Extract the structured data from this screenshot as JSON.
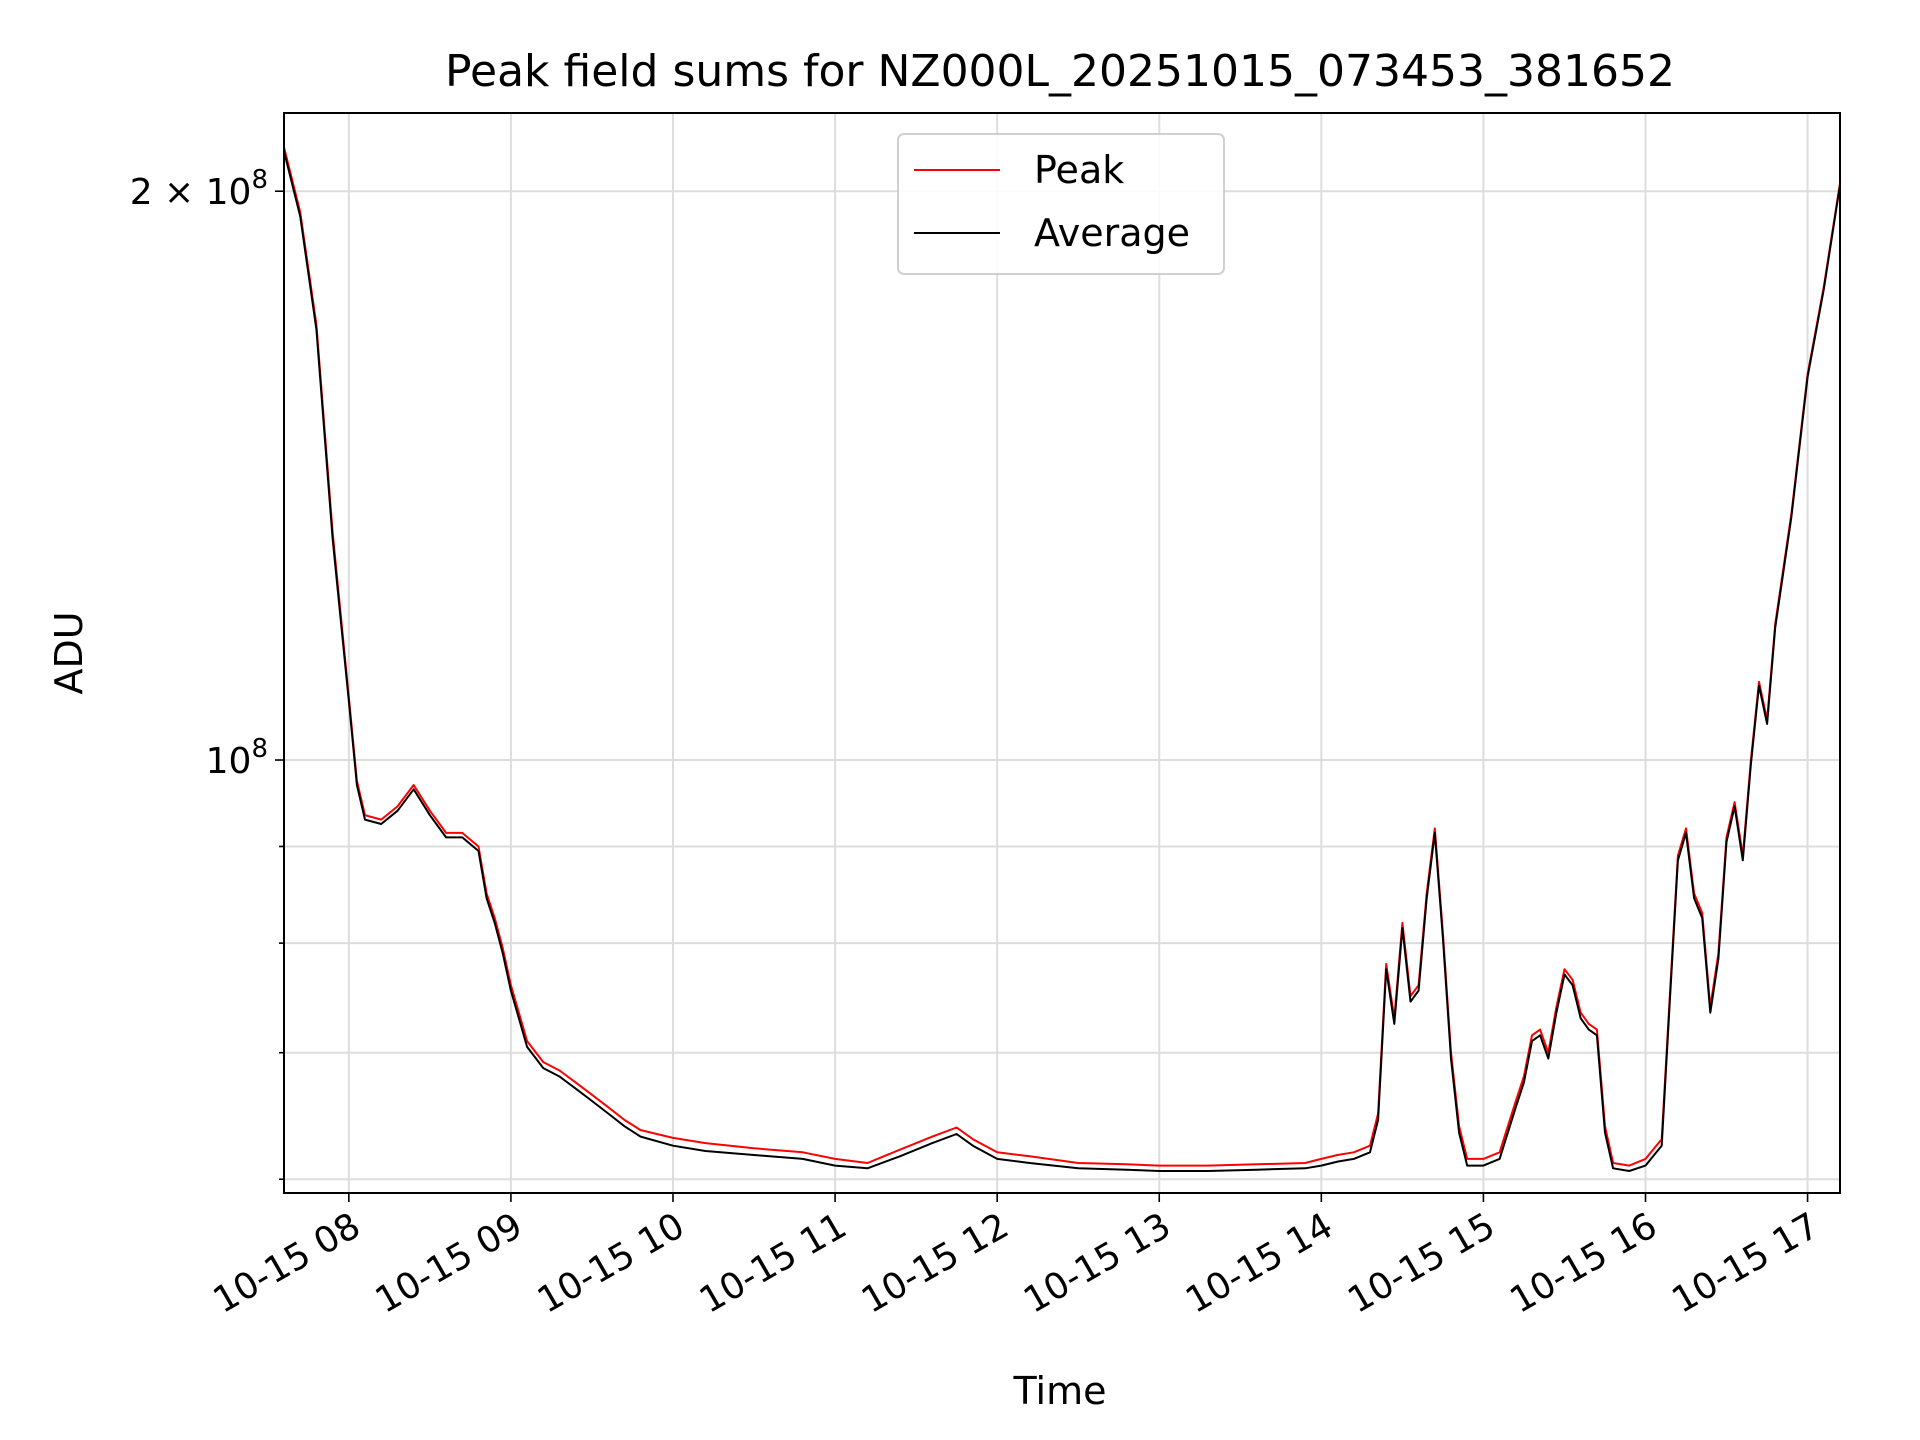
{
  "chart_data": {
    "type": "line",
    "title": "Peak field sums for NZ000L_20251015_073453_381652",
    "xlabel": "Time",
    "ylabel": "ADU",
    "yscale": "log",
    "grid": true,
    "legend_position": "upper-center",
    "xlim_hours": [
      7.6,
      17.2
    ],
    "ylim": [
      59000000,
      220000000
    ],
    "x_ticks": [
      {
        "hour": 8,
        "label": "10-15 08"
      },
      {
        "hour": 9,
        "label": "10-15 09"
      },
      {
        "hour": 10,
        "label": "10-15 10"
      },
      {
        "hour": 11,
        "label": "10-15 11"
      },
      {
        "hour": 12,
        "label": "10-15 12"
      },
      {
        "hour": 13,
        "label": "10-15 13"
      },
      {
        "hour": 14,
        "label": "10-15 14"
      },
      {
        "hour": 15,
        "label": "10-15 15"
      },
      {
        "hour": 16,
        "label": "10-15 16"
      },
      {
        "hour": 17,
        "label": "10-15 17"
      }
    ],
    "y_major_ticks": [
      {
        "value": 100000000,
        "base": "10",
        "exp": "8"
      },
      {
        "value": 200000000,
        "base": "2 × 10",
        "exp": "8"
      }
    ],
    "y_minor_ticks": [
      60000000,
      70000000,
      80000000,
      90000000
    ],
    "series": [
      {
        "name": "Peak",
        "color": "#ff0000",
        "x_hours": [
          7.6,
          7.7,
          7.8,
          7.9,
          8.0,
          8.05,
          8.1,
          8.2,
          8.3,
          8.4,
          8.5,
          8.6,
          8.7,
          8.8,
          8.85,
          8.9,
          8.95,
          9.0,
          9.1,
          9.2,
          9.3,
          9.4,
          9.5,
          9.6,
          9.7,
          9.8,
          10.0,
          10.2,
          10.5,
          10.8,
          11.0,
          11.2,
          11.4,
          11.6,
          11.75,
          11.85,
          12.0,
          12.2,
          12.5,
          12.8,
          13.0,
          13.3,
          13.6,
          13.9,
          14.0,
          14.1,
          14.2,
          14.3,
          14.35,
          14.4,
          14.45,
          14.5,
          14.55,
          14.6,
          14.65,
          14.7,
          14.75,
          14.8,
          14.85,
          14.9,
          15.0,
          15.1,
          15.2,
          15.25,
          15.3,
          15.35,
          15.4,
          15.45,
          15.5,
          15.55,
          15.6,
          15.65,
          15.7,
          15.75,
          15.8,
          15.9,
          16.0,
          16.1,
          16.15,
          16.2,
          16.25,
          16.3,
          16.35,
          16.4,
          16.45,
          16.5,
          16.55,
          16.6,
          16.65,
          16.7,
          16.75,
          16.8,
          16.9,
          17.0,
          17.1,
          17.2
        ],
        "values": [
          211000000,
          195000000,
          170000000,
          132000000,
          108000000,
          97500000,
          93500000,
          93000000,
          94500000,
          97000000,
          94000000,
          91500000,
          91500000,
          90000000,
          85000000,
          82500000,
          79500000,
          76000000,
          71000000,
          69200000,
          68500000,
          67500000,
          66500000,
          65500000,
          64500000,
          63700000,
          63100000,
          62700000,
          62300000,
          62000000,
          61500000,
          61200000,
          62200000,
          63200000,
          63900000,
          63000000,
          62000000,
          61700000,
          61200000,
          61100000,
          61000000,
          61000000,
          61100000,
          61200000,
          61500000,
          61800000,
          62000000,
          62500000,
          65000000,
          78000000,
          73000000,
          82000000,
          75000000,
          76000000,
          85000000,
          92000000,
          81000000,
          70000000,
          64000000,
          61500000,
          61500000,
          62000000,
          66000000,
          68000000,
          71500000,
          72000000,
          70000000,
          74000000,
          77500000,
          76500000,
          73500000,
          72500000,
          72000000,
          64000000,
          61200000,
          61000000,
          61500000,
          63000000,
          75000000,
          89000000,
          92000000,
          85000000,
          83000000,
          74000000,
          79000000,
          91000000,
          95000000,
          89000000,
          100000000,
          110000000,
          105000000,
          118000000,
          135000000,
          160000000,
          178000000,
          202000000
        ]
      },
      {
        "name": "Average",
        "color": "#000000",
        "x_hours": [
          7.6,
          7.7,
          7.8,
          7.9,
          8.0,
          8.05,
          8.1,
          8.2,
          8.3,
          8.4,
          8.5,
          8.6,
          8.7,
          8.8,
          8.85,
          8.9,
          8.95,
          9.0,
          9.1,
          9.2,
          9.3,
          9.4,
          9.5,
          9.6,
          9.7,
          9.8,
          10.0,
          10.2,
          10.5,
          10.8,
          11.0,
          11.2,
          11.4,
          11.6,
          11.75,
          11.85,
          12.0,
          12.2,
          12.5,
          12.8,
          13.0,
          13.3,
          13.6,
          13.9,
          14.0,
          14.1,
          14.2,
          14.3,
          14.35,
          14.4,
          14.45,
          14.5,
          14.55,
          14.6,
          14.65,
          14.7,
          14.75,
          14.8,
          14.85,
          14.9,
          15.0,
          15.1,
          15.2,
          15.25,
          15.3,
          15.35,
          15.4,
          15.45,
          15.5,
          15.55,
          15.6,
          15.65,
          15.7,
          15.75,
          15.8,
          15.9,
          16.0,
          16.1,
          16.15,
          16.2,
          16.25,
          16.3,
          16.35,
          16.4,
          16.45,
          16.5,
          16.55,
          16.6,
          16.65,
          16.7,
          16.75,
          16.8,
          16.9,
          17.0,
          17.1,
          17.2
        ],
        "values": [
          210000000,
          194000000,
          169000000,
          131000000,
          107500000,
          97000000,
          93000000,
          92500000,
          94000000,
          96500000,
          93500000,
          91000000,
          91000000,
          89500000,
          84500000,
          82000000,
          79000000,
          75500000,
          70500000,
          68700000,
          68000000,
          67000000,
          66000000,
          65000000,
          64000000,
          63200000,
          62500000,
          62100000,
          61800000,
          61500000,
          61000000,
          60800000,
          61700000,
          62700000,
          63400000,
          62500000,
          61500000,
          61200000,
          60800000,
          60700000,
          60600000,
          60600000,
          60700000,
          60800000,
          61000000,
          61300000,
          61500000,
          62000000,
          64500000,
          77500000,
          72500000,
          81500000,
          74500000,
          75500000,
          84500000,
          91500000,
          80500000,
          69500000,
          63500000,
          61000000,
          61000000,
          61500000,
          65500000,
          67500000,
          71000000,
          71500000,
          69500000,
          73500000,
          77000000,
          76000000,
          73000000,
          72000000,
          71500000,
          63500000,
          60800000,
          60600000,
          61000000,
          62500000,
          74500000,
          88500000,
          91500000,
          84500000,
          82500000,
          73500000,
          78500000,
          90500000,
          94500000,
          88500000,
          99500000,
          109500000,
          104500000,
          117500000,
          134500000,
          159500000,
          177500000,
          201500000
        ]
      }
    ]
  }
}
